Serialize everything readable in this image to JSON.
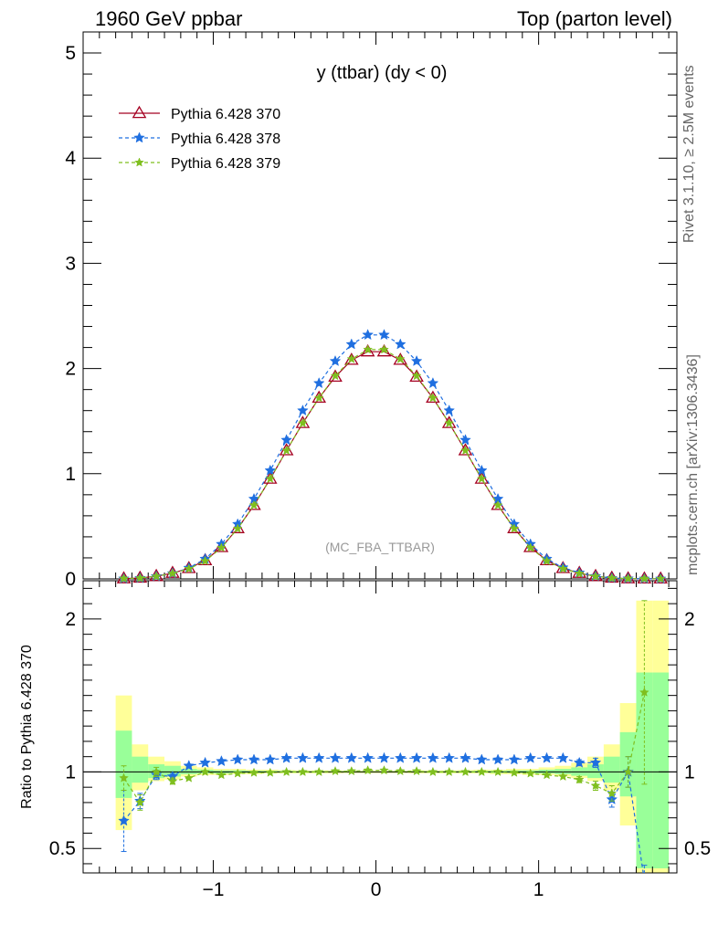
{
  "header": {
    "left": "1960 GeV ppbar",
    "right": "Top (parton level)"
  },
  "side": {
    "rivet": "Rivet 3.1.10, ≥ 2.5M events",
    "mcplots": "mcplots.cern.ch [arXiv:1306.3436]"
  },
  "chart_data": [
    {
      "type": "line",
      "title": "y (ttbar) (dy < 0)",
      "annotation": "(MC_FBA_TTBAR)",
      "xlim": [
        -1.8,
        1.85
      ],
      "ylim": [
        0,
        5.2
      ],
      "yticks": [
        0,
        1,
        2,
        3,
        4,
        5
      ],
      "legend_position": "top-left",
      "colors": {
        "370": "#a50021",
        "378": "#1f6fe0",
        "379": "#7fbf1f"
      },
      "x": [
        -1.55,
        -1.45,
        -1.35,
        -1.25,
        -1.15,
        -1.05,
        -0.95,
        -0.85,
        -0.75,
        -0.65,
        -0.55,
        -0.45,
        -0.35,
        -0.25,
        -0.15,
        -0.05,
        0.05,
        0.15,
        0.25,
        0.35,
        0.45,
        0.55,
        0.65,
        0.75,
        0.85,
        0.95,
        1.05,
        1.15,
        1.25,
        1.35,
        1.45,
        1.55,
        1.65,
        1.75
      ],
      "series": [
        {
          "name": "Pythia 6.428 370",
          "marker": "triangle-open",
          "dash": "solid",
          "values": [
            0.003,
            0.009,
            0.025,
            0.055,
            0.1,
            0.175,
            0.3,
            0.48,
            0.7,
            0.95,
            1.22,
            1.48,
            1.72,
            1.92,
            2.08,
            2.16,
            2.16,
            2.08,
            1.92,
            1.72,
            1.48,
            1.22,
            0.95,
            0.7,
            0.48,
            0.3,
            0.175,
            0.1,
            0.055,
            0.025,
            0.009,
            0.003,
            0.0015,
            0.001
          ]
        },
        {
          "name": "Pythia 6.428 378",
          "marker": "star",
          "dash": "dashed",
          "values": [
            0.002,
            0.007,
            0.024,
            0.052,
            0.104,
            0.19,
            0.33,
            0.52,
            0.76,
            1.03,
            1.32,
            1.6,
            1.86,
            2.07,
            2.23,
            2.32,
            2.32,
            2.23,
            2.07,
            1.86,
            1.6,
            1.32,
            1.03,
            0.76,
            0.52,
            0.33,
            0.19,
            0.108,
            0.058,
            0.026,
            0.0075,
            0.003,
            0.0014,
            0.0009
          ]
        },
        {
          "name": "Pythia 6.428 379",
          "marker": "star",
          "dash": "dashed",
          "values": [
            0.0029,
            0.0073,
            0.024,
            0.052,
            0.096,
            0.17,
            0.296,
            0.478,
            0.7,
            0.952,
            1.22,
            1.48,
            1.72,
            1.93,
            2.09,
            2.18,
            2.18,
            2.09,
            1.93,
            1.72,
            1.48,
            1.22,
            0.952,
            0.7,
            0.478,
            0.296,
            0.17,
            0.096,
            0.052,
            0.024,
            0.0077,
            0.003,
            0.0022,
            0.001
          ]
        }
      ]
    },
    {
      "type": "line",
      "ylabel": "Ratio to Pythia 6.428 370",
      "xlim": [
        -1.8,
        1.85
      ],
      "ylim": [
        0.34,
        2.25
      ],
      "yticks": [
        0.5,
        1,
        2
      ],
      "xticks": [
        -1,
        0,
        1
      ],
      "band_edges": [
        -1.6,
        -1.5,
        -1.4,
        -1.3,
        -1.2,
        -1.1,
        -1.0,
        -0.9,
        -0.8,
        -0.7,
        -0.6,
        -0.5,
        -0.4,
        -0.3,
        -0.2,
        -0.1,
        0.0,
        0.1,
        0.2,
        0.3,
        0.4,
        0.5,
        0.6,
        0.7,
        0.8,
        0.9,
        1.0,
        1.1,
        1.2,
        1.3,
        1.4,
        1.5,
        1.6,
        1.7,
        1.8
      ],
      "band_yellow": [
        [
          0.62,
          1.5
        ],
        [
          0.88,
          1.18
        ],
        [
          0.94,
          1.1
        ],
        [
          0.95,
          1.07
        ],
        [
          0.97,
          1.04
        ],
        [
          0.98,
          1.03
        ],
        [
          0.98,
          1.02
        ],
        [
          0.985,
          1.02
        ],
        [
          0.985,
          1.015
        ],
        [
          0.99,
          1.015
        ],
        [
          0.99,
          1.012
        ],
        [
          0.99,
          1.01
        ],
        [
          0.99,
          1.01
        ],
        [
          0.99,
          1.01
        ],
        [
          0.992,
          1.008
        ],
        [
          0.992,
          1.008
        ],
        [
          0.992,
          1.008
        ],
        [
          0.992,
          1.008
        ],
        [
          0.99,
          1.01
        ],
        [
          0.99,
          1.01
        ],
        [
          0.99,
          1.01
        ],
        [
          0.99,
          1.012
        ],
        [
          0.99,
          1.015
        ],
        [
          0.985,
          1.015
        ],
        [
          0.985,
          1.02
        ],
        [
          0.98,
          1.02
        ],
        [
          0.98,
          1.03
        ],
        [
          0.97,
          1.04
        ],
        [
          0.96,
          1.06
        ],
        [
          0.94,
          1.1
        ],
        [
          0.88,
          1.18
        ],
        [
          0.65,
          1.45
        ],
        [
          0.3,
          2.12
        ],
        [
          0.3,
          2.12
        ]
      ],
      "band_green": [
        [
          0.83,
          1.27
        ],
        [
          0.93,
          1.1
        ],
        [
          0.96,
          1.05
        ],
        [
          0.97,
          1.04
        ],
        [
          0.985,
          1.02
        ],
        [
          0.99,
          1.015
        ],
        [
          0.99,
          1.01
        ],
        [
          0.993,
          1.01
        ],
        [
          0.993,
          1.008
        ],
        [
          0.995,
          1.007
        ],
        [
          0.995,
          1.006
        ],
        [
          0.995,
          1.005
        ],
        [
          0.995,
          1.005
        ],
        [
          0.996,
          1.005
        ],
        [
          0.996,
          1.004
        ],
        [
          0.996,
          1.004
        ],
        [
          0.996,
          1.004
        ],
        [
          0.996,
          1.004
        ],
        [
          0.996,
          1.005
        ],
        [
          0.995,
          1.005
        ],
        [
          0.995,
          1.005
        ],
        [
          0.995,
          1.006
        ],
        [
          0.995,
          1.007
        ],
        [
          0.993,
          1.008
        ],
        [
          0.993,
          1.01
        ],
        [
          0.99,
          1.01
        ],
        [
          0.99,
          1.015
        ],
        [
          0.985,
          1.02
        ],
        [
          0.975,
          1.03
        ],
        [
          0.96,
          1.05
        ],
        [
          0.93,
          1.1
        ],
        [
          0.84,
          1.26
        ],
        [
          0.37,
          1.65
        ],
        [
          0.37,
          1.65
        ]
      ],
      "x": [
        -1.55,
        -1.45,
        -1.35,
        -1.25,
        -1.15,
        -1.05,
        -0.95,
        -0.85,
        -0.75,
        -0.65,
        -0.55,
        -0.45,
        -0.35,
        -0.25,
        -0.15,
        -0.05,
        0.05,
        0.15,
        0.25,
        0.35,
        0.45,
        0.55,
        0.65,
        0.75,
        0.85,
        0.95,
        1.05,
        1.15,
        1.25,
        1.35,
        1.45,
        1.55,
        1.65
      ],
      "series": [
        {
          "name": "Pythia 6.428 378",
          "values": [
            0.68,
            0.81,
            0.98,
            0.97,
            1.04,
            1.06,
            1.07,
            1.08,
            1.08,
            1.08,
            1.09,
            1.09,
            1.09,
            1.09,
            1.09,
            1.09,
            1.09,
            1.09,
            1.09,
            1.09,
            1.09,
            1.09,
            1.08,
            1.08,
            1.08,
            1.09,
            1.09,
            1.09,
            1.06,
            1.06,
            0.82,
            1.0,
            0.29
          ],
          "errors": [
            0.2,
            0.05,
            0.03,
            0.02,
            0.01,
            0.01,
            0.01,
            0.01,
            0.008,
            0.007,
            0.006,
            0.006,
            0.005,
            0.005,
            0.005,
            0.005,
            0.005,
            0.005,
            0.005,
            0.005,
            0.005,
            0.006,
            0.006,
            0.007,
            0.008,
            0.01,
            0.01,
            0.01,
            0.02,
            0.03,
            0.05,
            0.1,
            0.1
          ]
        },
        {
          "name": "Pythia 6.428 379",
          "values": [
            0.96,
            0.8,
            1.0,
            0.94,
            0.96,
            1.0,
            0.98,
            0.99,
            0.995,
            0.995,
            1.0,
            1.0,
            1.0,
            1.005,
            1.005,
            1.01,
            1.01,
            1.005,
            1.005,
            1.0,
            1.0,
            1.0,
            1.0,
            1.0,
            0.995,
            0.99,
            0.98,
            0.97,
            0.95,
            0.91,
            0.86,
            1.0,
            1.52
          ],
          "errors": [
            0.08,
            0.05,
            0.03,
            0.02,
            0.01,
            0.01,
            0.01,
            0.01,
            0.008,
            0.007,
            0.006,
            0.006,
            0.005,
            0.005,
            0.005,
            0.005,
            0.005,
            0.005,
            0.005,
            0.005,
            0.005,
            0.006,
            0.006,
            0.007,
            0.008,
            0.01,
            0.01,
            0.01,
            0.02,
            0.03,
            0.05,
            0.1,
            0.6
          ]
        }
      ]
    }
  ]
}
